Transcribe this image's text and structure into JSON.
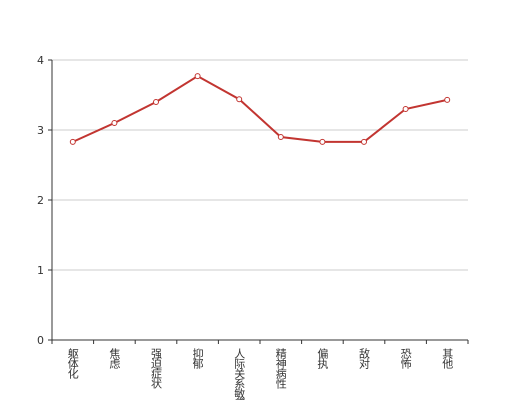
{
  "chart_data": {
    "type": "line",
    "categories": [
      "躯体化",
      "焦虑",
      "强迫症状",
      "抑郁",
      "人际关系敏感",
      "精神病性",
      "偏执",
      "敌对",
      "恐怖",
      "其他"
    ],
    "values": [
      2.83,
      3.1,
      3.4,
      3.77,
      3.44,
      2.9,
      2.83,
      2.83,
      3.3,
      3.43
    ],
    "color": "#c23531",
    "ylim": [
      0,
      4
    ],
    "yticks": [
      0,
      1,
      2,
      3,
      4
    ],
    "grid": true
  }
}
